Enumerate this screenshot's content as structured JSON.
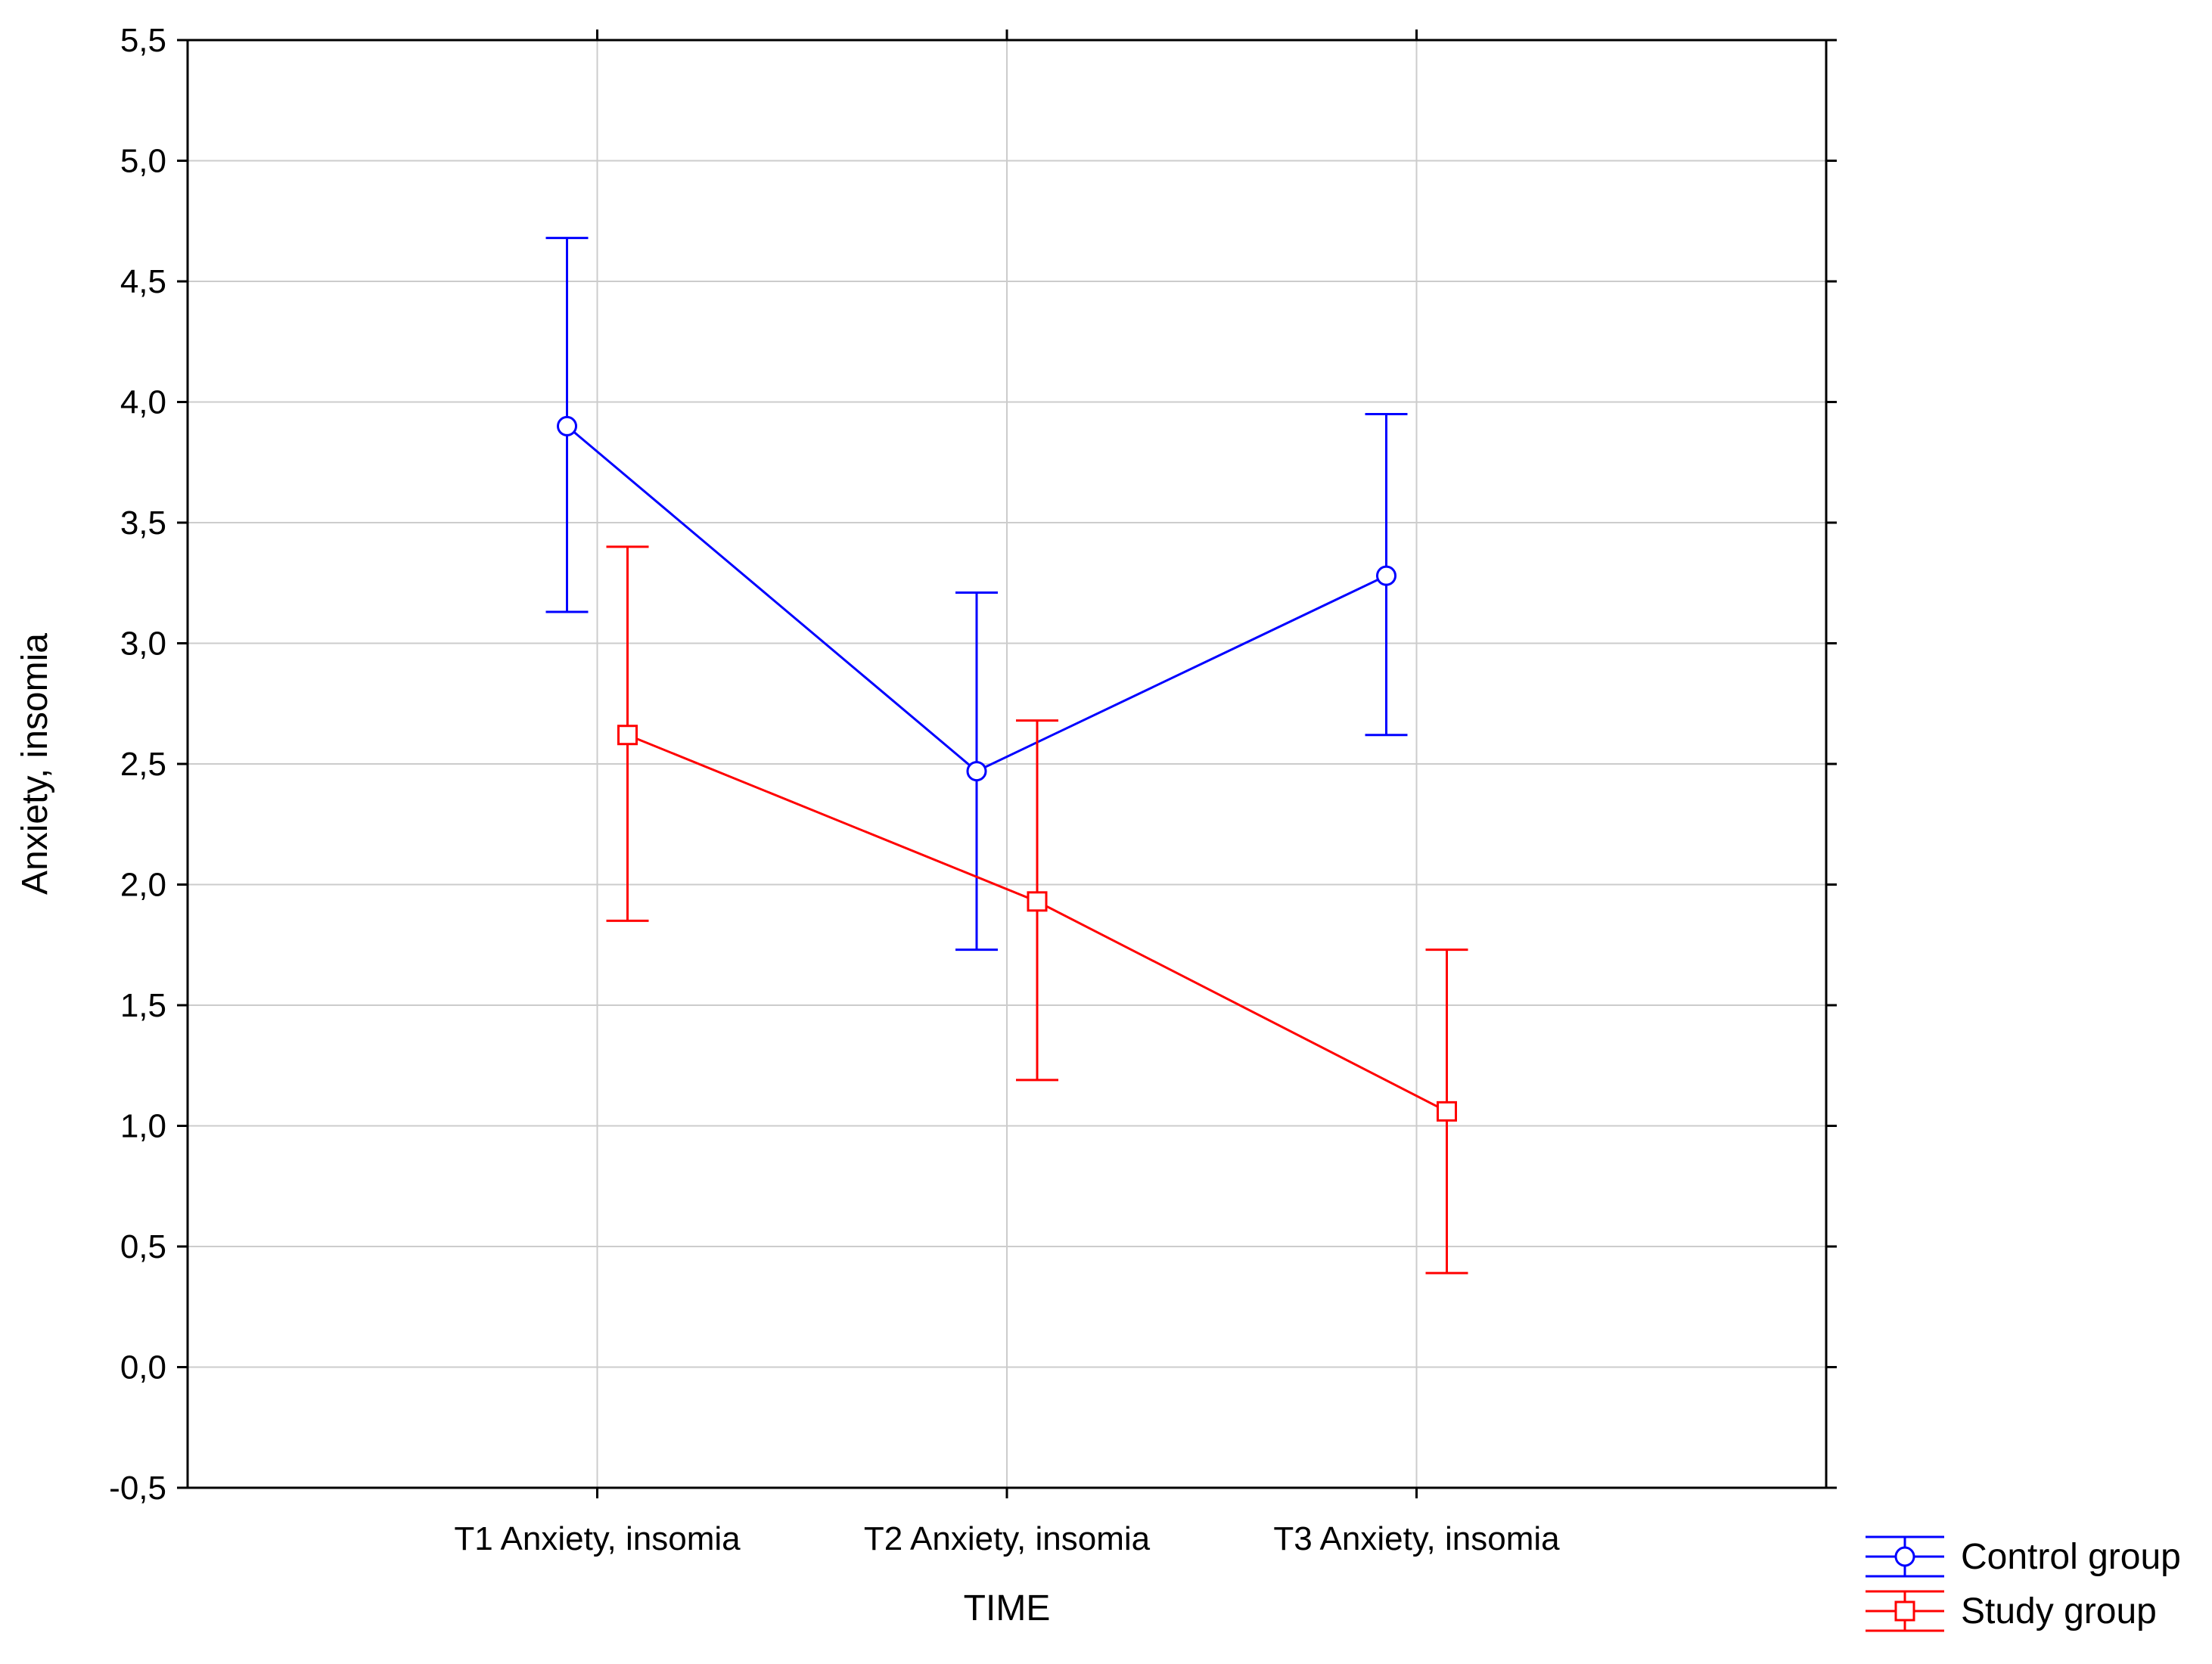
{
  "chart_data": {
    "type": "line",
    "xlabel": "TIME",
    "ylabel": "Anxiety, insomia",
    "ylim": [
      -0.5,
      5.5
    ],
    "yticks": [
      "-0,5",
      "0,0",
      "0,5",
      "1,0",
      "1,5",
      "2,0",
      "2,5",
      "3,0",
      "3,5",
      "4,0",
      "4,5",
      "5,0",
      "5,5"
    ],
    "categories": [
      "T1 Anxiety, insomia",
      "T2 Anxiety, insomia",
      "T3 Anxiety, insomia"
    ],
    "grid": true,
    "legend_position": "outside-bottom-right",
    "series": [
      {
        "name": "Control group",
        "color": "#0000ff",
        "marker": "circle",
        "values": [
          3.9,
          2.47,
          3.28
        ],
        "lower": [
          3.13,
          1.73,
          2.62
        ],
        "upper": [
          4.68,
          3.21,
          3.95
        ]
      },
      {
        "name": "Study group",
        "color": "#ff0000",
        "marker": "square",
        "values": [
          2.62,
          1.93,
          1.06
        ],
        "lower": [
          1.85,
          1.19,
          0.39
        ],
        "upper": [
          3.4,
          2.68,
          1.73
        ]
      }
    ]
  }
}
